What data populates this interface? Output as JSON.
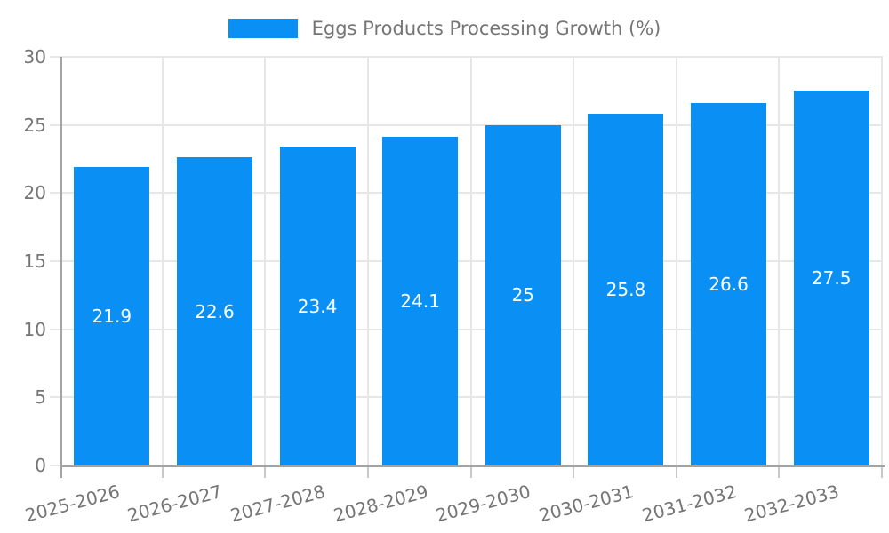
{
  "chart_data": {
    "type": "bar",
    "title": "Eggs Products Processing Growth (%)",
    "categories": [
      "2025-2026",
      "2026-2027",
      "2027-2028",
      "2028-2029",
      "2029-2030",
      "2030-2031",
      "2031-2032",
      "2032-2033"
    ],
    "values": [
      21.9,
      22.6,
      23.4,
      24.1,
      25,
      25.8,
      26.6,
      27.5
    ],
    "value_labels": [
      "21.9",
      "22.6",
      "23.4",
      "24.1",
      "25",
      "25.8",
      "26.6",
      "27.5"
    ],
    "xlabel": "",
    "ylabel": "",
    "ylim": [
      0,
      30
    ],
    "yticks": [
      0,
      5,
      10,
      15,
      20,
      25,
      30
    ],
    "ytick_labels": [
      "0",
      "5",
      "10",
      "15",
      "20",
      "25",
      "30"
    ],
    "grid": true,
    "legend": {
      "position": "top",
      "label": "Eggs Products Processing Growth (%)"
    },
    "colors": {
      "bar": "#0A90F5",
      "value_label": "#FFFFFF",
      "axis_text": "#757575",
      "grid_line": "#E7E7E7",
      "axis_line": "#A3A3A3",
      "tick_mark": "#C9C9C9"
    }
  }
}
